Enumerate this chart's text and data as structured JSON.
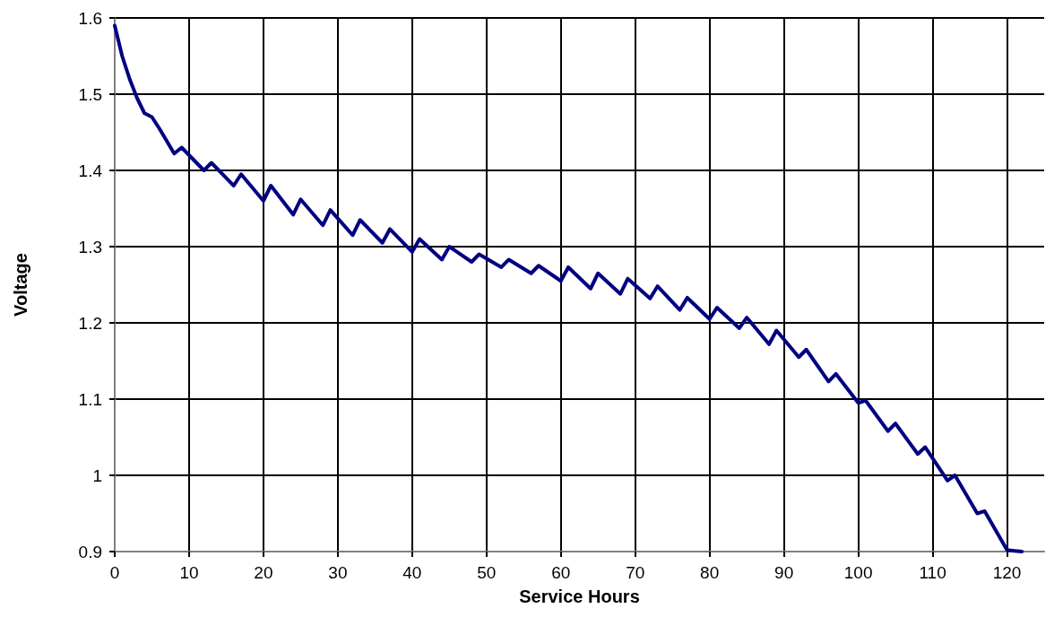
{
  "chart_data": {
    "type": "line",
    "xlabel": "Service Hours",
    "ylabel": "Voltage",
    "x": [
      0,
      1,
      2,
      3,
      4,
      5,
      6,
      8,
      9,
      12,
      13,
      16,
      17,
      20,
      21,
      24,
      25,
      28,
      29,
      32,
      33,
      36,
      37,
      40,
      41,
      44,
      45,
      48,
      49,
      52,
      53,
      56,
      57,
      60,
      61,
      64,
      65,
      68,
      69,
      72,
      73,
      76,
      77,
      80,
      81,
      84,
      85,
      88,
      89,
      92,
      93,
      96,
      97,
      100,
      101,
      104,
      105,
      108,
      109,
      112,
      113,
      116,
      117,
      120,
      121,
      122
    ],
    "series": [
      {
        "color": "#000080",
        "values": [
          1.59,
          1.55,
          1.52,
          1.495,
          1.475,
          1.47,
          1.455,
          1.422,
          1.43,
          1.4,
          1.41,
          1.38,
          1.395,
          1.36,
          1.38,
          1.342,
          1.362,
          1.328,
          1.348,
          1.315,
          1.335,
          1.305,
          1.323,
          1.293,
          1.31,
          1.283,
          1.3,
          1.28,
          1.29,
          1.273,
          1.283,
          1.265,
          1.275,
          1.255,
          1.273,
          1.245,
          1.265,
          1.238,
          1.258,
          1.232,
          1.248,
          1.217,
          1.233,
          1.205,
          1.22,
          1.193,
          1.207,
          1.172,
          1.19,
          1.155,
          1.165,
          1.123,
          1.133,
          1.095,
          1.098,
          1.058,
          1.068,
          1.028,
          1.037,
          0.993,
          1.0,
          0.95,
          0.953,
          0.902,
          0.901,
          0.9
        ]
      }
    ],
    "xlim": [
      0,
      125
    ],
    "xticks": [
      0,
      10,
      20,
      30,
      40,
      50,
      60,
      70,
      80,
      90,
      100,
      110,
      120
    ],
    "ylim": [
      0.9,
      1.6
    ],
    "yticks": [
      0.9,
      1,
      1.1,
      1.2,
      1.3,
      1.4,
      1.5,
      1.6
    ],
    "grid": true,
    "marker": "none",
    "line_style": "solid"
  }
}
